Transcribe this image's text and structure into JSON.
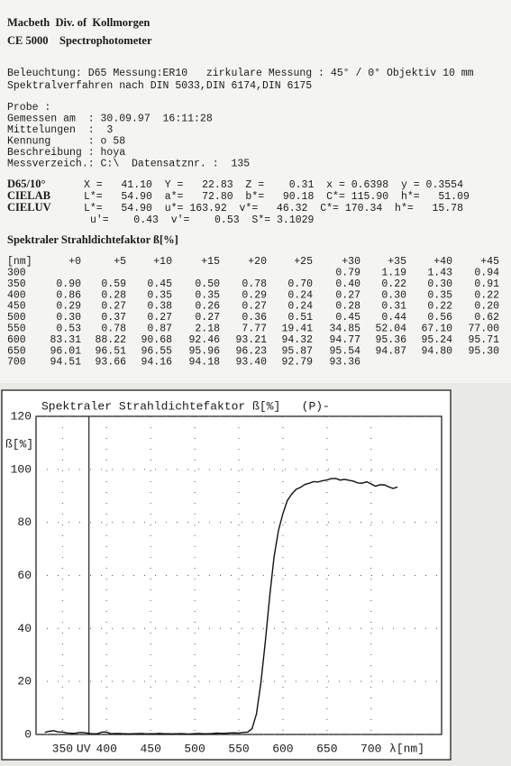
{
  "header": {
    "company": "Macbeth  Div. of  Kollmorgen",
    "instrument": "CE 5000    Spectrophotometer"
  },
  "settings": [
    "Beleuchtung: D65 Messung:ER10   zirkulare Messung : 45° / 0° Objektiv 10 mm",
    "Spektralverfahren nach DIN 5033,DIN 6174,DIN 6175"
  ],
  "sample": [
    "Probe :",
    "Gemessen am  : 30.09.97  16:11:28",
    "Mittelungen  :  3",
    "Kennung      : o 58",
    "Beschreibung : hoya",
    "Messverzeich.: C:\\  Datensatznr. :  135"
  ],
  "colorimetry": [
    {
      "label": "D65/10°",
      "text": "X =   41.10  Y =   22.83  Z =    0.31  x = 0.6398  y = 0.3554"
    },
    {
      "label": "CIELAB",
      "text": "L*=   54.90  a*=   72.80  b*=   90.18  C*= 115.90  h*=   51.09"
    },
    {
      "label": "CIELUV",
      "text": "L*=   54.90  u*= 163.92  v*=   46.32  C*= 170.34  h*=   15.78"
    }
  ],
  "uv_line": "u'=    0.43  v'=    0.53  S*= 3.1029",
  "table": {
    "title": "Spektraler Strahldichtefaktor ß[%]",
    "header": [
      "[nm]",
      "+0",
      "+5",
      "+10",
      "+15",
      "+20",
      "+25",
      "+30",
      "+35",
      "+40",
      "+45"
    ],
    "rows": [
      [
        "300",
        null,
        null,
        null,
        null,
        null,
        null,
        "0.79",
        "1.19",
        "1.43",
        "0.94"
      ],
      [
        "350",
        "0.90",
        "0.59",
        "0.45",
        "0.50",
        "0.78",
        "0.70",
        "0.40",
        "0.22",
        "0.30",
        "0.91"
      ],
      [
        "400",
        "0.86",
        "0.28",
        "0.35",
        "0.35",
        "0.29",
        "0.24",
        "0.27",
        "0.30",
        "0.35",
        "0.22"
      ],
      [
        "450",
        "0.29",
        "0.27",
        "0.38",
        "0.26",
        "0.27",
        "0.24",
        "0.28",
        "0.31",
        "0.22",
        "0.20"
      ],
      [
        "500",
        "0.30",
        "0.37",
        "0.27",
        "0.27",
        "0.36",
        "0.51",
        "0.45",
        "0.44",
        "0.56",
        "0.62"
      ],
      [
        "550",
        "0.53",
        "0.78",
        "0.87",
        "2.18",
        "7.77",
        "19.41",
        "34.85",
        "52.04",
        "67.10",
        "77.00"
      ],
      [
        "600",
        "83.31",
        "88.22",
        "90.68",
        "92.46",
        "93.21",
        "94.32",
        "94.77",
        "95.36",
        "95.24",
        "95.71"
      ],
      [
        "650",
        "96.01",
        "96.51",
        "96.55",
        "95.96",
        "96.23",
        "95.87",
        "95.54",
        "94.87",
        "94.80",
        "95.30"
      ],
      [
        "700",
        "94.51",
        "93.66",
        "94.16",
        "94.18",
        "93.40",
        "92.79",
        "93.36",
        null,
        null,
        null
      ]
    ]
  },
  "chart_data": {
    "type": "line",
    "title": "Spektraler Strahldichtefaktor ß[%]   (P)-",
    "y_label": "ß[%]",
    "x_label": "λ[nm]",
    "color": "#111111",
    "grid": true,
    "xlim": [
      320,
      780
    ],
    "ylim": [
      0,
      120
    ],
    "xticks": [
      350,
      {
        "value": 380,
        "label": "UV"
      },
      400,
      450,
      500,
      550,
      600,
      650,
      700
    ],
    "yticks": [
      0,
      20,
      40,
      60,
      80,
      100,
      120
    ],
    "x": [
      330,
      335,
      340,
      345,
      350,
      355,
      360,
      365,
      370,
      375,
      380,
      385,
      390,
      395,
      400,
      405,
      410,
      415,
      420,
      425,
      430,
      435,
      440,
      445,
      450,
      455,
      460,
      465,
      470,
      475,
      480,
      485,
      490,
      495,
      500,
      505,
      510,
      515,
      520,
      525,
      530,
      535,
      540,
      545,
      550,
      555,
      560,
      565,
      570,
      575,
      580,
      585,
      590,
      595,
      600,
      605,
      610,
      615,
      620,
      625,
      630,
      635,
      640,
      645,
      650,
      655,
      660,
      665,
      670,
      675,
      680,
      685,
      690,
      695,
      700,
      705,
      710,
      715,
      720,
      725,
      730
    ],
    "values": [
      0.79,
      1.19,
      1.43,
      0.94,
      0.9,
      0.59,
      0.45,
      0.5,
      0.78,
      0.7,
      0.4,
      0.22,
      0.3,
      0.91,
      0.86,
      0.28,
      0.35,
      0.35,
      0.29,
      0.24,
      0.27,
      0.3,
      0.35,
      0.22,
      0.29,
      0.27,
      0.38,
      0.26,
      0.27,
      0.24,
      0.28,
      0.31,
      0.22,
      0.2,
      0.3,
      0.37,
      0.27,
      0.27,
      0.36,
      0.51,
      0.45,
      0.44,
      0.56,
      0.62,
      0.53,
      0.78,
      0.87,
      2.18,
      7.77,
      19.41,
      34.85,
      52.04,
      67.1,
      77.0,
      83.31,
      88.22,
      90.68,
      92.46,
      93.21,
      94.32,
      94.77,
      95.36,
      95.24,
      95.71,
      96.01,
      96.51,
      96.55,
      95.96,
      96.23,
      95.87,
      95.54,
      94.87,
      94.8,
      95.3,
      94.51,
      93.66,
      94.16,
      94.18,
      93.4,
      92.79,
      93.36
    ]
  }
}
